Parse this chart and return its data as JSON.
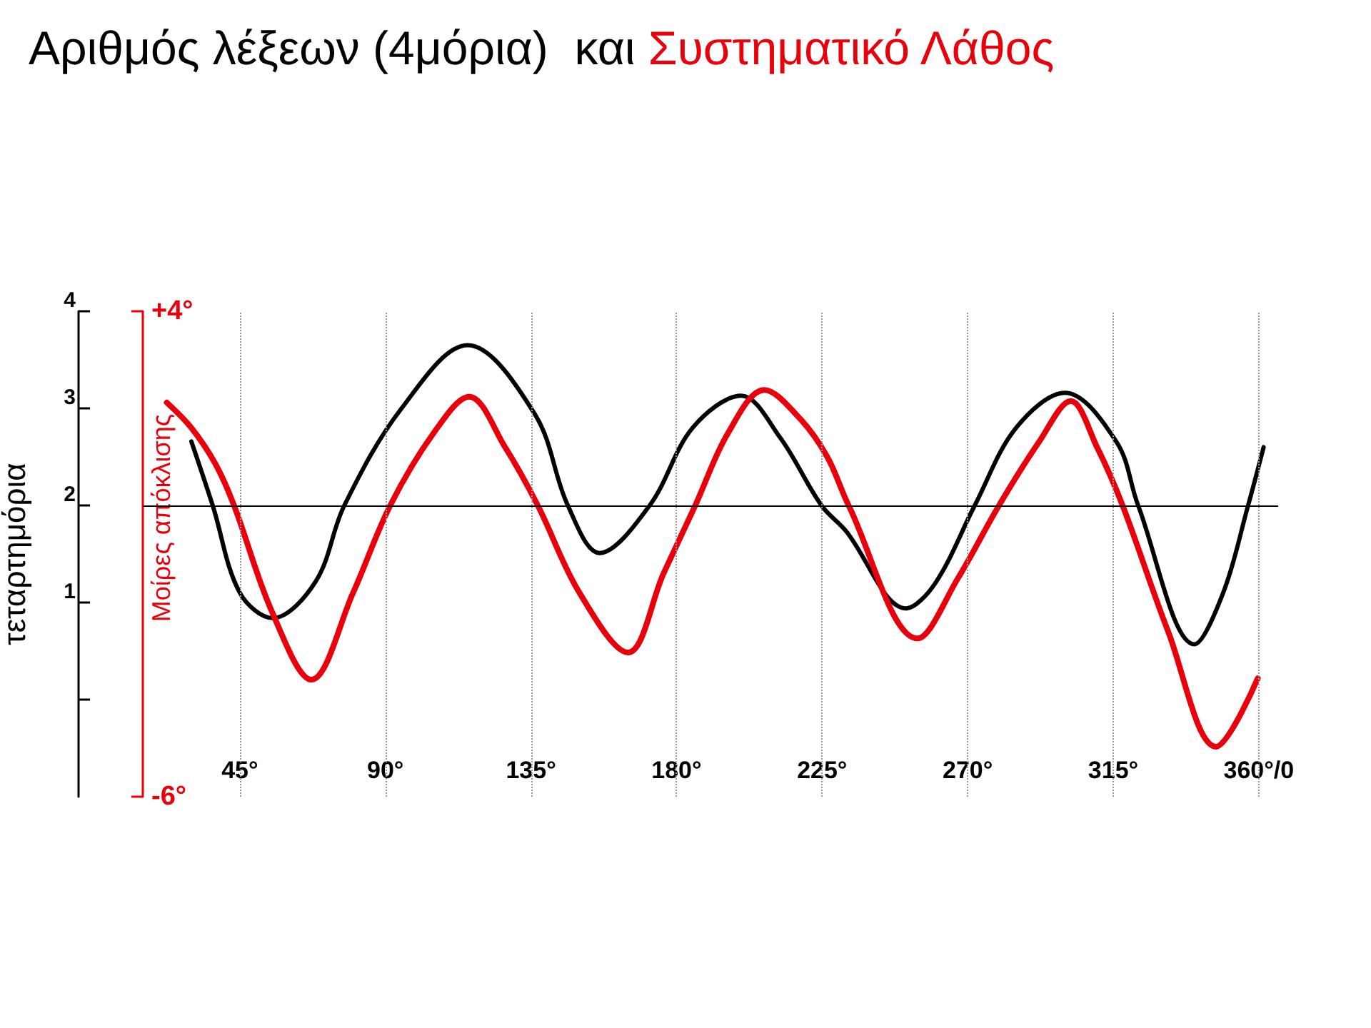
{
  "chart_data": {
    "type": "line",
    "title": "Αριθμός λέξεων (4μόρια)  και Συστηματικό Λάθος",
    "ylabel": "τεταρτημόρια",
    "y2label": "Μοίρες απόκλισης",
    "xlim": [
      15,
      366
    ],
    "xticks": [
      {
        "value": 45,
        "label": "45°"
      },
      {
        "value": 90,
        "label": "90°"
      },
      {
        "value": 135,
        "label": "135°"
      },
      {
        "value": 180,
        "label": "180°"
      },
      {
        "value": 225,
        "label": "225°"
      },
      {
        "value": 270,
        "label": "270°"
      },
      {
        "value": 315,
        "label": "315°"
      },
      {
        "value": 360,
        "label": "360°/0"
      }
    ],
    "ylim": [
      -1,
      4
    ],
    "yticks": [
      {
        "value": 0,
        "label": null
      },
      1,
      2,
      3,
      4
    ],
    "y2lim": [
      -6,
      4
    ],
    "y2ticks": [
      {
        "value": -6,
        "label": "-6°"
      },
      {
        "value": 4,
        "label": "+4°"
      }
    ],
    "grid": "x",
    "marker": "none",
    "line_style": "solid",
    "ref_lines": [
      {
        "axis": "y",
        "value": 2,
        "label": null,
        "color": "#000000"
      }
    ],
    "series": [
      {
        "color": "#000000",
        "x": [
          30,
          36.6,
          45,
          55.2,
          68.5,
          77.3,
          95,
          115.4,
          136.2,
          146.4,
          156.2,
          171.7,
          185,
          200,
          212,
          224.8,
          232.3,
          251,
          260,
          272.2,
          285,
          300.1,
          316.1,
          322.7,
          340.1,
          349,
          356.7,
          361.5
        ],
        "values": [
          2.66,
          2.0,
          1.1,
          0.84,
          1.22,
          2.0,
          3.0,
          3.65,
          2.94,
          2.0,
          1.51,
          2.0,
          2.8,
          3.13,
          2.7,
          2.0,
          1.74,
          0.94,
          1.2,
          2.0,
          2.8,
          3.16,
          2.65,
          2.0,
          0.57,
          1.1,
          2.0,
          2.6
        ]
      },
      {
        "color": "#e8000b",
        "axis": "y2",
        "x": [
          22.4,
          30,
          37.5,
          43.2,
          55,
          67.1,
          80,
          91.5,
          105,
          115.9,
          127,
          137.1,
          150,
          165,
          176,
          185.8,
          196,
          207.1,
          218,
          226.6,
          233.2,
          254.5,
          267,
          279.7,
          292,
          301.9,
          310,
          317.9,
          332,
          346.8,
          359.7
        ],
        "values": [
          2.12,
          1.6,
          0.85,
          0,
          -2.2,
          -3.59,
          -1.8,
          0,
          1.5,
          2.24,
          1.2,
          0,
          -1.8,
          -3.03,
          -1.4,
          0,
          1.5,
          2.38,
          1.8,
          1.0,
          0,
          -2.74,
          -1.5,
          0,
          1.3,
          2.15,
          1.2,
          0,
          -2.6,
          -4.97,
          -3.56
        ]
      }
    ]
  }
}
